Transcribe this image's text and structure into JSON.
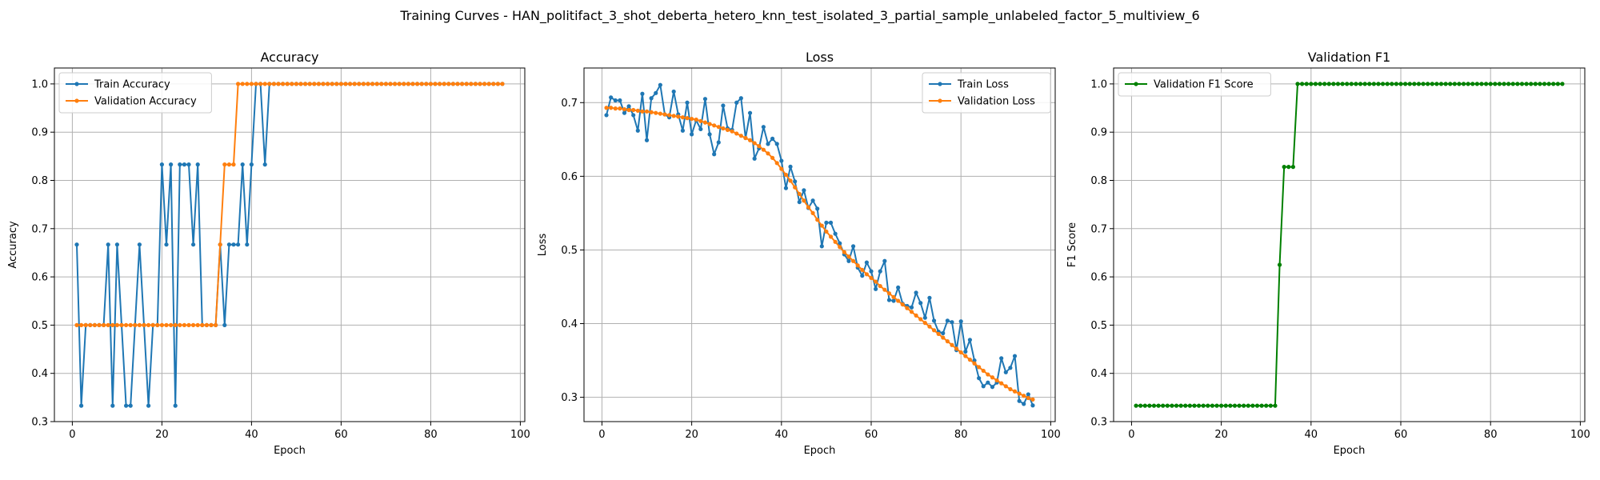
{
  "figure": {
    "title": "Training Curves - HAN_politifact_3_shot_deberta_hetero_knn_test_isolated_3_partial_sample_unlabeled_factor_5_multiview_6"
  },
  "colors": {
    "blue": "#1f77b4",
    "orange": "#ff7f0e",
    "green": "#008000",
    "grid": "#b0b0b0"
  },
  "chart_data": [
    {
      "type": "line",
      "title": "Accuracy",
      "xlabel": "Epoch",
      "ylabel": "Accuracy",
      "xlim": [
        -4,
        101
      ],
      "ylim": [
        0.3,
        1.033
      ],
      "xticks": [
        0,
        20,
        40,
        60,
        80,
        100
      ],
      "yticks": [
        0.3,
        0.4,
        0.5,
        0.6,
        0.7,
        0.8,
        0.9,
        1.0
      ],
      "grid": true,
      "legend": "upper left",
      "series": [
        {
          "name": "Train Accuracy",
          "color": "#1f77b4",
          "x": [
            1,
            2,
            3,
            4,
            5,
            6,
            7,
            8,
            9,
            10,
            11,
            12,
            13,
            14,
            15,
            16,
            17,
            18,
            19,
            20,
            21,
            22,
            23,
            24,
            25,
            26,
            27,
            28,
            29,
            30,
            31,
            32,
            33,
            34,
            35,
            36,
            37,
            38,
            39,
            40,
            41,
            42,
            43,
            44,
            45,
            46,
            47,
            48,
            49,
            50,
            51,
            52,
            53,
            54,
            55,
            56,
            57,
            58,
            59,
            60,
            61,
            62,
            63,
            64,
            65,
            66,
            67,
            68,
            69,
            70,
            71,
            72,
            73,
            74,
            75,
            76,
            77,
            78,
            79,
            80,
            81,
            82,
            83,
            84,
            85,
            86,
            87,
            88,
            89,
            90,
            91,
            92,
            93,
            94,
            95,
            96
          ],
          "y": [
            0.667,
            0.333,
            0.5,
            0.5,
            0.5,
            0.5,
            0.5,
            0.667,
            0.333,
            0.667,
            0.5,
            0.333,
            0.333,
            0.5,
            0.667,
            0.5,
            0.333,
            0.5,
            0.5,
            0.833,
            0.667,
            0.833,
            0.333,
            0.833,
            0.833,
            0.833,
            0.667,
            0.833,
            0.5,
            0.5,
            0.5,
            0.5,
            0.667,
            0.5,
            0.667,
            0.667,
            0.667,
            0.833,
            0.667,
            0.833,
            1.0,
            1.0,
            0.833,
            1.0,
            1.0,
            1.0,
            1.0,
            1.0,
            1.0,
            1.0,
            1.0,
            1.0,
            1.0,
            1.0,
            1.0,
            1.0,
            1.0,
            1.0,
            1.0,
            1.0,
            1.0,
            1.0,
            1.0,
            1.0,
            1.0,
            1.0,
            1.0,
            1.0,
            1.0,
            1.0,
            1.0,
            1.0,
            1.0,
            1.0,
            1.0,
            1.0,
            1.0,
            1.0,
            1.0,
            1.0,
            1.0,
            1.0,
            1.0,
            1.0,
            1.0,
            1.0,
            1.0,
            1.0,
            1.0,
            1.0,
            1.0,
            1.0,
            1.0,
            1.0,
            1.0,
            1.0
          ]
        },
        {
          "name": "Validation Accuracy",
          "color": "#ff7f0e",
          "x": [
            1,
            2,
            3,
            4,
            5,
            6,
            7,
            8,
            9,
            10,
            11,
            12,
            13,
            14,
            15,
            16,
            17,
            18,
            19,
            20,
            21,
            22,
            23,
            24,
            25,
            26,
            27,
            28,
            29,
            30,
            31,
            32,
            33,
            34,
            35,
            36,
            37,
            38,
            39,
            40,
            41,
            42,
            43,
            44,
            45,
            46,
            47,
            48,
            49,
            50,
            51,
            52,
            53,
            54,
            55,
            56,
            57,
            58,
            59,
            60,
            61,
            62,
            63,
            64,
            65,
            66,
            67,
            68,
            69,
            70,
            71,
            72,
            73,
            74,
            75,
            76,
            77,
            78,
            79,
            80,
            81,
            82,
            83,
            84,
            85,
            86,
            87,
            88,
            89,
            90,
            91,
            92,
            93,
            94,
            95,
            96
          ],
          "y": [
            0.5,
            0.5,
            0.5,
            0.5,
            0.5,
            0.5,
            0.5,
            0.5,
            0.5,
            0.5,
            0.5,
            0.5,
            0.5,
            0.5,
            0.5,
            0.5,
            0.5,
            0.5,
            0.5,
            0.5,
            0.5,
            0.5,
            0.5,
            0.5,
            0.5,
            0.5,
            0.5,
            0.5,
            0.5,
            0.5,
            0.5,
            0.5,
            0.667,
            0.833,
            0.833,
            0.833,
            1.0,
            1.0,
            1.0,
            1.0,
            1.0,
            1.0,
            1.0,
            1.0,
            1.0,
            1.0,
            1.0,
            1.0,
            1.0,
            1.0,
            1.0,
            1.0,
            1.0,
            1.0,
            1.0,
            1.0,
            1.0,
            1.0,
            1.0,
            1.0,
            1.0,
            1.0,
            1.0,
            1.0,
            1.0,
            1.0,
            1.0,
            1.0,
            1.0,
            1.0,
            1.0,
            1.0,
            1.0,
            1.0,
            1.0,
            1.0,
            1.0,
            1.0,
            1.0,
            1.0,
            1.0,
            1.0,
            1.0,
            1.0,
            1.0,
            1.0,
            1.0,
            1.0,
            1.0,
            1.0,
            1.0,
            1.0,
            1.0,
            1.0,
            1.0,
            1.0
          ]
        }
      ]
    },
    {
      "type": "line",
      "title": "Loss",
      "xlabel": "Epoch",
      "ylabel": "Loss",
      "xlim": [
        -4,
        101
      ],
      "ylim": [
        0.267,
        0.747
      ],
      "xticks": [
        0,
        20,
        40,
        60,
        80,
        100
      ],
      "yticks": [
        0.3,
        0.4,
        0.5,
        0.6,
        0.7
      ],
      "grid": true,
      "legend": "upper right",
      "series": [
        {
          "name": "Train Loss",
          "color": "#1f77b4",
          "x": [
            1,
            2,
            3,
            4,
            5,
            6,
            7,
            8,
            9,
            10,
            11,
            12,
            13,
            14,
            15,
            16,
            17,
            18,
            19,
            20,
            21,
            22,
            23,
            24,
            25,
            26,
            27,
            28,
            29,
            30,
            31,
            32,
            33,
            34,
            35,
            36,
            37,
            38,
            39,
            40,
            41,
            42,
            43,
            44,
            45,
            46,
            47,
            48,
            49,
            50,
            51,
            52,
            53,
            54,
            55,
            56,
            57,
            58,
            59,
            60,
            61,
            62,
            63,
            64,
            65,
            66,
            67,
            68,
            69,
            70,
            71,
            72,
            73,
            74,
            75,
            76,
            77,
            78,
            79,
            80,
            81,
            82,
            83,
            84,
            85,
            86,
            87,
            88,
            89,
            90,
            91,
            92,
            93,
            94,
            95,
            96
          ],
          "y": [
            0.683,
            0.707,
            0.703,
            0.703,
            0.686,
            0.695,
            0.683,
            0.662,
            0.712,
            0.649,
            0.706,
            0.713,
            0.724,
            0.684,
            0.68,
            0.715,
            0.684,
            0.662,
            0.7,
            0.657,
            0.676,
            0.664,
            0.705,
            0.657,
            0.63,
            0.646,
            0.696,
            0.665,
            0.663,
            0.7,
            0.706,
            0.652,
            0.686,
            0.624,
            0.638,
            0.667,
            0.644,
            0.651,
            0.644,
            0.621,
            0.584,
            0.613,
            0.593,
            0.565,
            0.581,
            0.557,
            0.567,
            0.556,
            0.505,
            0.537,
            0.537,
            0.522,
            0.509,
            0.494,
            0.485,
            0.505,
            0.476,
            0.465,
            0.483,
            0.471,
            0.447,
            0.471,
            0.485,
            0.432,
            0.431,
            0.449,
            0.427,
            0.424,
            0.422,
            0.442,
            0.428,
            0.408,
            0.435,
            0.404,
            0.389,
            0.387,
            0.404,
            0.402,
            0.364,
            0.403,
            0.362,
            0.378,
            0.35,
            0.326,
            0.315,
            0.32,
            0.314,
            0.32,
            0.353,
            0.334,
            0.34,
            0.356,
            0.295,
            0.291,
            0.304,
            0.289
          ]
        },
        {
          "name": "Validation Loss",
          "color": "#ff7f0e",
          "x": [
            1,
            2,
            3,
            4,
            5,
            6,
            7,
            8,
            9,
            10,
            11,
            12,
            13,
            14,
            15,
            16,
            17,
            18,
            19,
            20,
            21,
            22,
            23,
            24,
            25,
            26,
            27,
            28,
            29,
            30,
            31,
            32,
            33,
            34,
            35,
            36,
            37,
            38,
            39,
            40,
            41,
            42,
            43,
            44,
            45,
            46,
            47,
            48,
            49,
            50,
            51,
            52,
            53,
            54,
            55,
            56,
            57,
            58,
            59,
            60,
            61,
            62,
            63,
            64,
            65,
            66,
            67,
            68,
            69,
            70,
            71,
            72,
            73,
            74,
            75,
            76,
            77,
            78,
            79,
            80,
            81,
            82,
            83,
            84,
            85,
            86,
            87,
            88,
            89,
            90,
            91,
            92,
            93,
            94,
            95,
            96
          ],
          "y": [
            0.693,
            0.693,
            0.692,
            0.692,
            0.691,
            0.69,
            0.69,
            0.689,
            0.688,
            0.688,
            0.687,
            0.686,
            0.685,
            0.684,
            0.683,
            0.682,
            0.681,
            0.68,
            0.679,
            0.678,
            0.677,
            0.675,
            0.673,
            0.671,
            0.669,
            0.667,
            0.665,
            0.663,
            0.661,
            0.658,
            0.655,
            0.652,
            0.649,
            0.645,
            0.641,
            0.636,
            0.631,
            0.625,
            0.618,
            0.61,
            0.602,
            0.594,
            0.585,
            0.576,
            0.567,
            0.558,
            0.55,
            0.541,
            0.533,
            0.525,
            0.518,
            0.511,
            0.504,
            0.497,
            0.491,
            0.485,
            0.479,
            0.473,
            0.467,
            0.462,
            0.457,
            0.451,
            0.446,
            0.441,
            0.436,
            0.431,
            0.426,
            0.421,
            0.416,
            0.411,
            0.406,
            0.401,
            0.396,
            0.391,
            0.386,
            0.381,
            0.376,
            0.371,
            0.366,
            0.361,
            0.356,
            0.351,
            0.346,
            0.341,
            0.336,
            0.331,
            0.327,
            0.323,
            0.319,
            0.315,
            0.311,
            0.308,
            0.305,
            0.302,
            0.299,
            0.297
          ]
        }
      ]
    },
    {
      "type": "line",
      "title": "Validation F1",
      "xlabel": "Epoch",
      "ylabel": "F1 Score",
      "xlim": [
        -4,
        101
      ],
      "ylim": [
        0.3,
        1.033
      ],
      "xticks": [
        0,
        20,
        40,
        60,
        80,
        100
      ],
      "yticks": [
        0.3,
        0.4,
        0.5,
        0.6,
        0.7,
        0.8,
        0.9,
        1.0
      ],
      "grid": true,
      "legend": "upper left",
      "series": [
        {
          "name": "Validation F1 Score",
          "color": "#008000",
          "x": [
            1,
            2,
            3,
            4,
            5,
            6,
            7,
            8,
            9,
            10,
            11,
            12,
            13,
            14,
            15,
            16,
            17,
            18,
            19,
            20,
            21,
            22,
            23,
            24,
            25,
            26,
            27,
            28,
            29,
            30,
            31,
            32,
            33,
            34,
            35,
            36,
            37,
            38,
            39,
            40,
            41,
            42,
            43,
            44,
            45,
            46,
            47,
            48,
            49,
            50,
            51,
            52,
            53,
            54,
            55,
            56,
            57,
            58,
            59,
            60,
            61,
            62,
            63,
            64,
            65,
            66,
            67,
            68,
            69,
            70,
            71,
            72,
            73,
            74,
            75,
            76,
            77,
            78,
            79,
            80,
            81,
            82,
            83,
            84,
            85,
            86,
            87,
            88,
            89,
            90,
            91,
            92,
            93,
            94,
            95,
            96
          ],
          "y": [
            0.333,
            0.333,
            0.333,
            0.333,
            0.333,
            0.333,
            0.333,
            0.333,
            0.333,
            0.333,
            0.333,
            0.333,
            0.333,
            0.333,
            0.333,
            0.333,
            0.333,
            0.333,
            0.333,
            0.333,
            0.333,
            0.333,
            0.333,
            0.333,
            0.333,
            0.333,
            0.333,
            0.333,
            0.333,
            0.333,
            0.333,
            0.333,
            0.625,
            0.828,
            0.828,
            0.828,
            1.0,
            1.0,
            1.0,
            1.0,
            1.0,
            1.0,
            1.0,
            1.0,
            1.0,
            1.0,
            1.0,
            1.0,
            1.0,
            1.0,
            1.0,
            1.0,
            1.0,
            1.0,
            1.0,
            1.0,
            1.0,
            1.0,
            1.0,
            1.0,
            1.0,
            1.0,
            1.0,
            1.0,
            1.0,
            1.0,
            1.0,
            1.0,
            1.0,
            1.0,
            1.0,
            1.0,
            1.0,
            1.0,
            1.0,
            1.0,
            1.0,
            1.0,
            1.0,
            1.0,
            1.0,
            1.0,
            1.0,
            1.0,
            1.0,
            1.0,
            1.0,
            1.0,
            1.0,
            1.0,
            1.0,
            1.0,
            1.0,
            1.0,
            1.0,
            1.0
          ]
        }
      ]
    }
  ]
}
